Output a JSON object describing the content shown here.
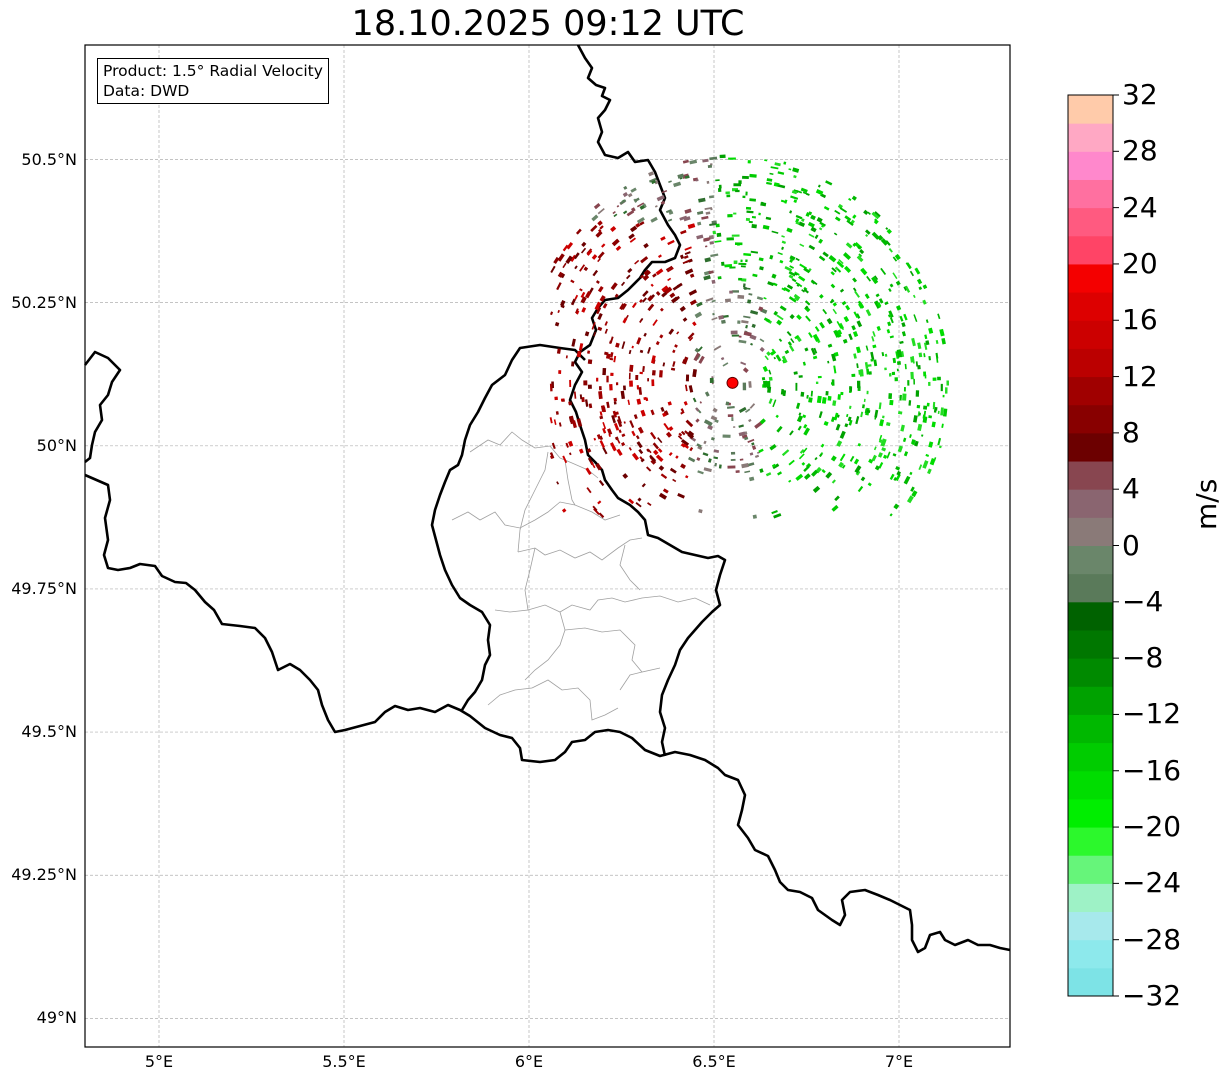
{
  "title": "18.10.2025 09:12 UTC",
  "info": {
    "product": "Product: 1.5° Radial Velocity",
    "source": "Data: DWD"
  },
  "map_extent": {
    "lon_min": 4.8,
    "lon_max": 7.3,
    "lat_min": 48.95,
    "lat_max": 50.7
  },
  "radar_site": {
    "lon": 6.55,
    "lat": 50.11,
    "color": "#ff0000"
  },
  "lat_ticks": [
    {
      "value": 50.5,
      "label": "50.5°N"
    },
    {
      "value": 50.25,
      "label": "50.25°N"
    },
    {
      "value": 50.0,
      "label": "50°N"
    },
    {
      "value": 49.75,
      "label": "49.75°N"
    },
    {
      "value": 49.5,
      "label": "49.5°N"
    },
    {
      "value": 49.25,
      "label": "49.25°N"
    },
    {
      "value": 49.0,
      "label": "49°N"
    }
  ],
  "lon_ticks": [
    {
      "value": 5.0,
      "label": "5°E"
    },
    {
      "value": 5.5,
      "label": "5.5°E"
    },
    {
      "value": 6.0,
      "label": "6°E"
    },
    {
      "value": 6.5,
      "label": "6.5°E"
    },
    {
      "value": 7.0,
      "label": "7°E"
    }
  ],
  "colorbar": {
    "unit": "m/s",
    "min": -32,
    "max": 32,
    "step": 2,
    "ticks": [
      {
        "value": 32,
        "label": "32"
      },
      {
        "value": 28,
        "label": "28"
      },
      {
        "value": 24,
        "label": "24"
      },
      {
        "value": 20,
        "label": "20"
      },
      {
        "value": 16,
        "label": "16"
      },
      {
        "value": 12,
        "label": "12"
      },
      {
        "value": 8,
        "label": "8"
      },
      {
        "value": 4,
        "label": "4"
      },
      {
        "value": 0,
        "label": "0"
      },
      {
        "value": -4,
        "label": "−4"
      },
      {
        "value": -8,
        "label": "−8"
      },
      {
        "value": -12,
        "label": "−12"
      },
      {
        "value": -16,
        "label": "−16"
      },
      {
        "value": -20,
        "label": "−20"
      },
      {
        "value": -24,
        "label": "−24"
      },
      {
        "value": -28,
        "label": "−28"
      },
      {
        "value": -32,
        "label": "−32"
      }
    ],
    "colors": [
      "#7de3e6",
      "#8de9ec",
      "#a7e9ec",
      "#9ef2c6",
      "#66f57a",
      "#2cf82c",
      "#00ee00",
      "#00dd00",
      "#00cc00",
      "#00b800",
      "#00a200",
      "#008a00",
      "#007700",
      "#006200",
      "#5a7a5a",
      "#6a866a",
      "#8a7a78",
      "#8a6570",
      "#884650",
      "#6c0000",
      "#880000",
      "#a00000",
      "#bb0000",
      "#cc0000",
      "#dd0000",
      "#f40000",
      "#ff4466",
      "#ff5a80",
      "#ff70a0",
      "#ff88cc",
      "#ffa8c4",
      "#ffcbaa"
    ]
  },
  "echo_colors": {
    "receding": [
      "#cc0000",
      "#8b0000",
      "#a00000",
      "#6c0000"
    ],
    "approaching": [
      "#00cc00",
      "#00b800",
      "#00dd00",
      "#00a200",
      "#22dd22"
    ],
    "weak": [
      "#884650",
      "#8a6570",
      "#6a866a",
      "#5a7a5a",
      "#8a7a78",
      "#2e6e2e"
    ]
  }
}
